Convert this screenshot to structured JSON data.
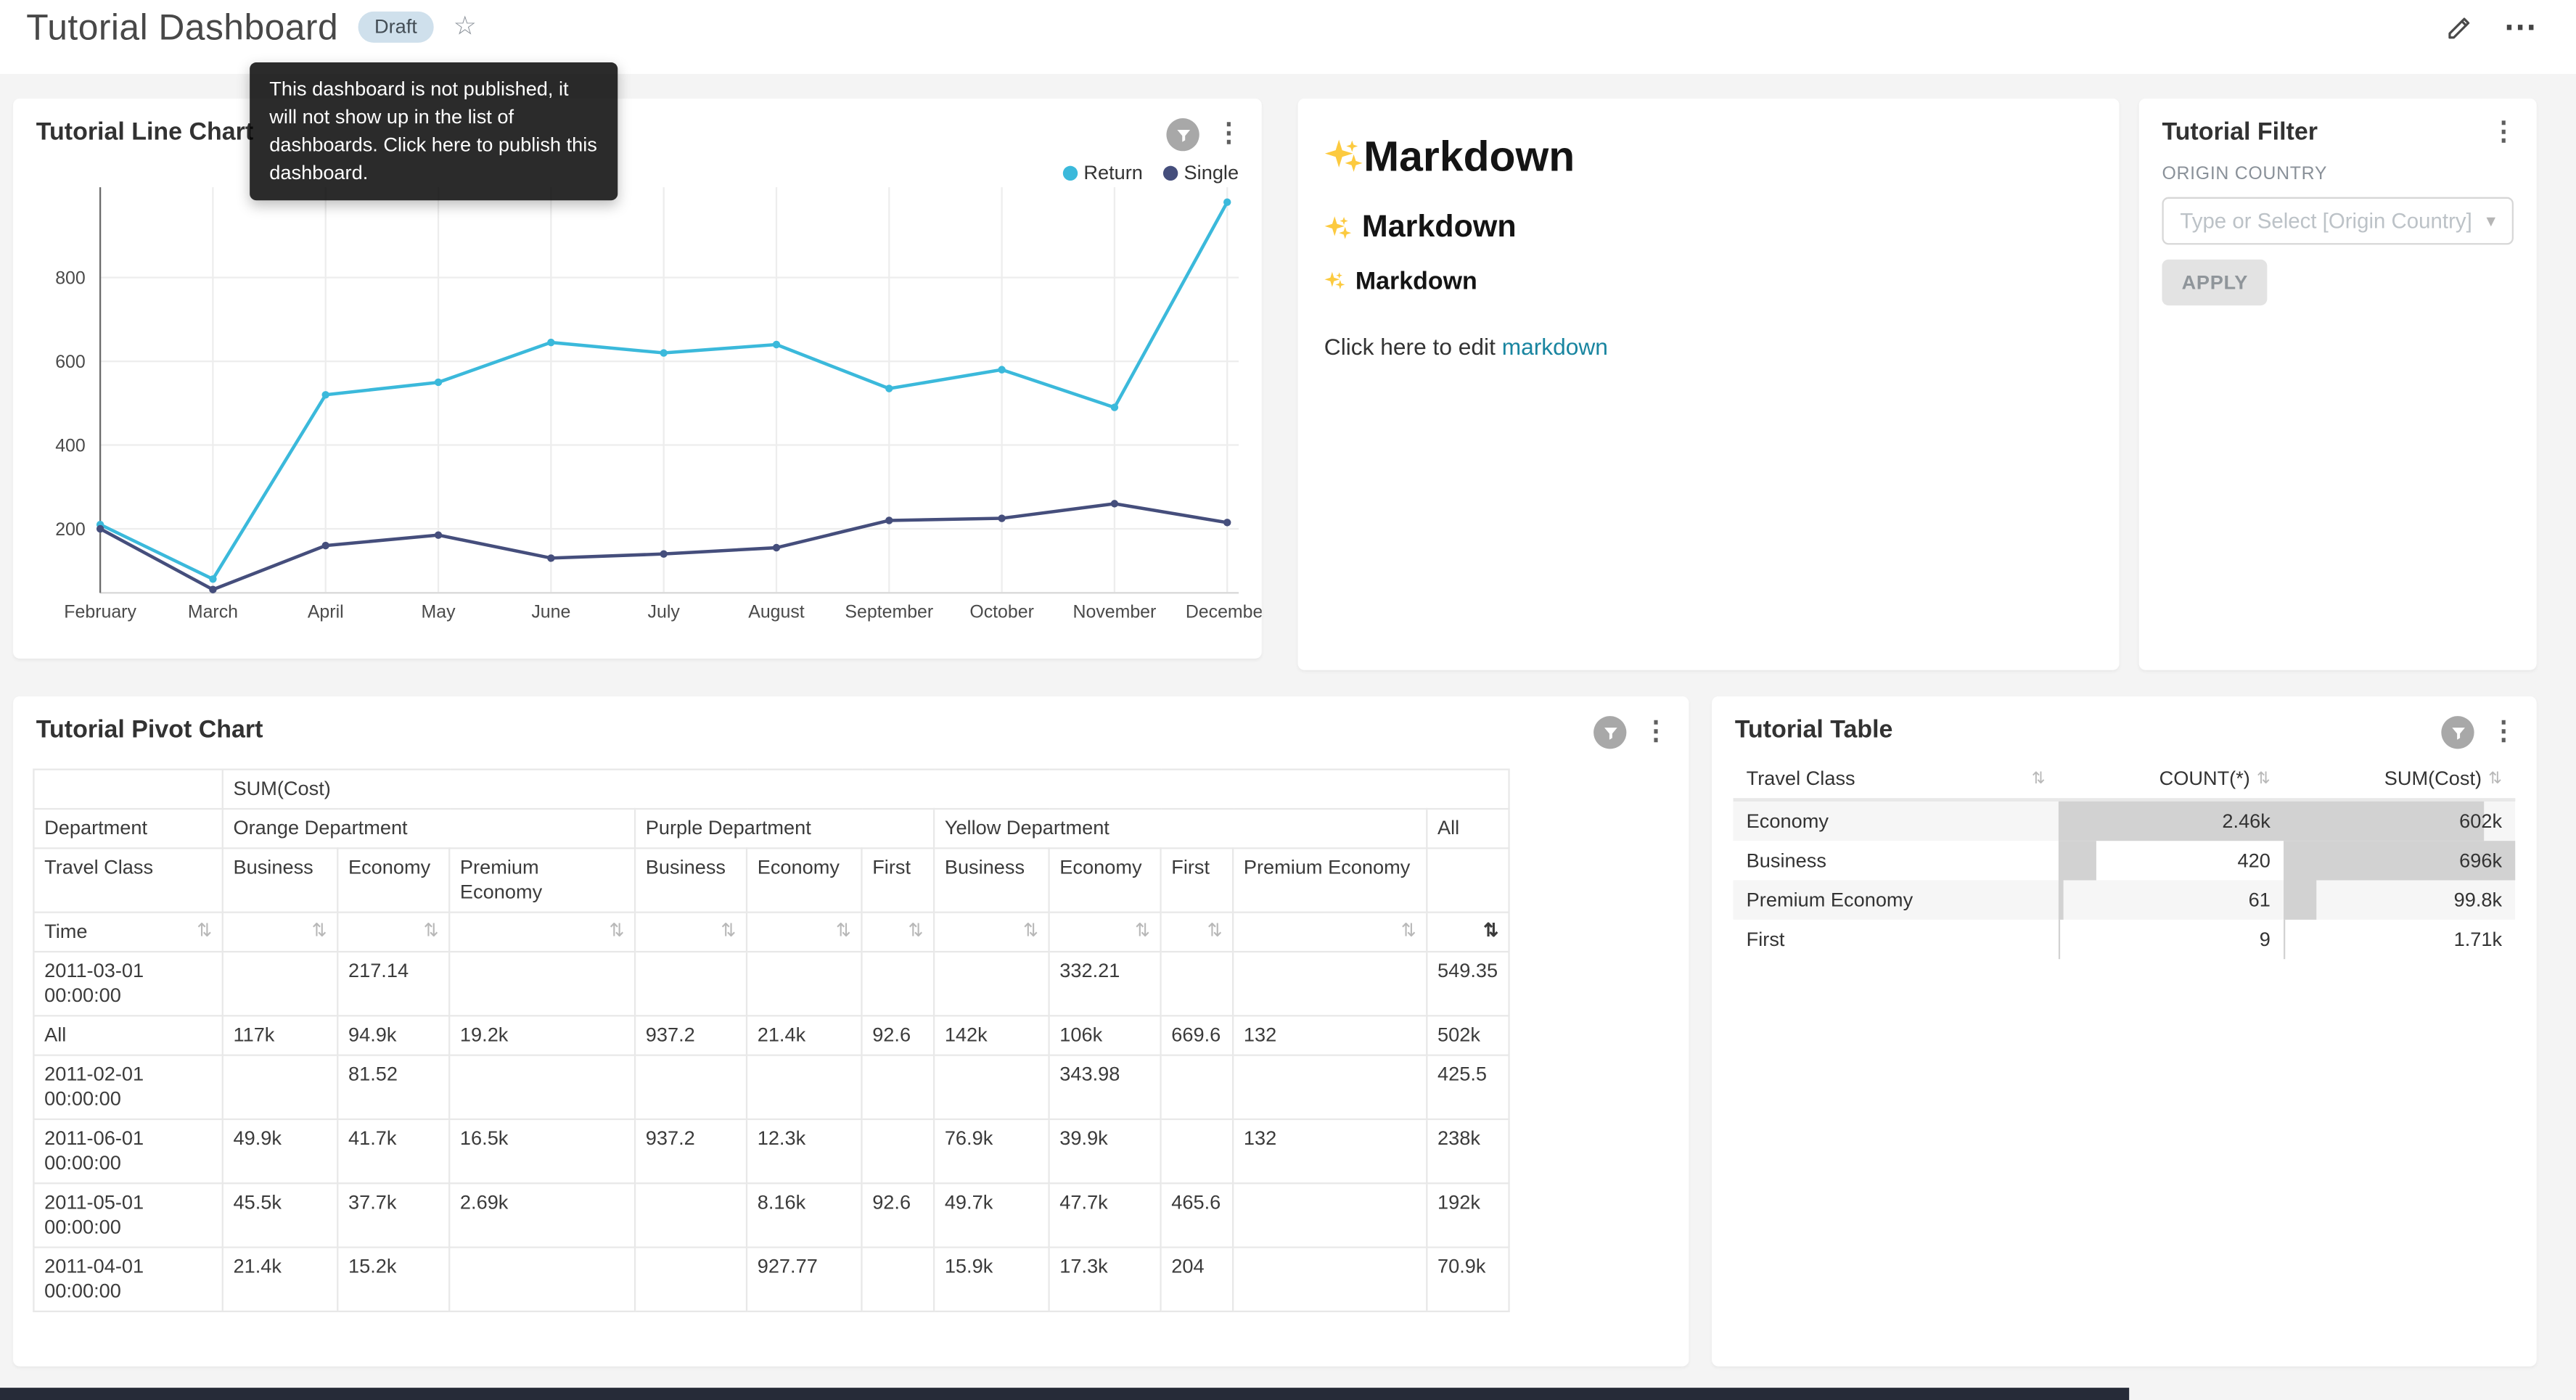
{
  "icons": {
    "kebab": "⋮",
    "more": "⋯",
    "star": "☆",
    "sort": "⇅",
    "caret_down": "▾"
  },
  "header": {
    "title": "Tutorial Dashboard",
    "badge_label": "Draft",
    "tooltip_text": "This dashboard is not published, it will not show up in the list of dashboards. Click here to publish this dashboard."
  },
  "line_chart_card": {
    "title": "Tutorial Line Chart",
    "chart_data": {
      "type": "line",
      "x": [
        "February",
        "March",
        "April",
        "May",
        "June",
        "July",
        "August",
        "September",
        "October",
        "November",
        "December"
      ],
      "series": [
        {
          "name": "Return",
          "color": "#3BB9DB",
          "values": [
            210,
            80,
            520,
            550,
            645,
            620,
            640,
            535,
            580,
            490,
            980
          ]
        },
        {
          "name": "Single",
          "color": "#454E7C",
          "values": [
            200,
            55,
            160,
            185,
            130,
            140,
            155,
            220,
            225,
            260,
            215
          ]
        }
      ],
      "yticks": [
        200,
        400,
        600,
        800
      ],
      "ylim": [
        0,
        1000
      ],
      "grid": true,
      "legend_position": "top-right"
    }
  },
  "markdown_card": {
    "icon": "sparkles-emoji",
    "heading1": "Markdown",
    "heading2": "Markdown",
    "heading3": "Markdown",
    "body_prefix": "Click here to edit ",
    "body_link": "markdown"
  },
  "filter_card": {
    "title": "Tutorial Filter",
    "field_label": "ORIGIN COUNTRY",
    "select_placeholder": "Type or Select [Origin Country]",
    "apply_button": "APPLY"
  },
  "pivot_card": {
    "title": "Tutorial Pivot Chart",
    "chart_data": {
      "type": "table",
      "metric": "SUM(Cost)",
      "row_dimension": "Department",
      "col_dimension": "Travel Class",
      "time_header": "Time",
      "column_groups": [
        {
          "label": "Orange Department",
          "columns": [
            "Business",
            "Economy",
            "Premium Economy"
          ]
        },
        {
          "label": "Purple Department",
          "columns": [
            "Business",
            "Economy",
            "First"
          ]
        },
        {
          "label": "Yellow Department",
          "columns": [
            "Business",
            "Economy",
            "First",
            "Premium Economy"
          ]
        },
        {
          "label": "All",
          "columns": [
            ""
          ]
        }
      ],
      "rows": [
        {
          "time": "2011-03-01 00:00:00",
          "values": [
            "",
            "217.14",
            "",
            "",
            "",
            "",
            "",
            "332.21",
            "",
            "",
            "549.35"
          ]
        },
        {
          "time": "All",
          "values": [
            "117k",
            "94.9k",
            "19.2k",
            "937.2",
            "21.4k",
            "92.6",
            "142k",
            "106k",
            "669.6",
            "132",
            "502k"
          ]
        },
        {
          "time": "2011-02-01 00:00:00",
          "values": [
            "",
            "81.52",
            "",
            "",
            "",
            "",
            "",
            "343.98",
            "",
            "",
            "425.5"
          ]
        },
        {
          "time": "2011-06-01 00:00:00",
          "values": [
            "49.9k",
            "41.7k",
            "16.5k",
            "937.2",
            "12.3k",
            "",
            "76.9k",
            "39.9k",
            "",
            "132",
            "238k"
          ]
        },
        {
          "time": "2011-05-01 00:00:00",
          "values": [
            "45.5k",
            "37.7k",
            "2.69k",
            "",
            "8.16k",
            "92.6",
            "49.7k",
            "47.7k",
            "465.6",
            "",
            "192k"
          ]
        },
        {
          "time": "2011-04-01 00:00:00",
          "values": [
            "21.4k",
            "15.2k",
            "",
            "",
            "927.77",
            "",
            "15.9k",
            "17.3k",
            "204",
            "",
            "70.9k"
          ]
        }
      ]
    }
  },
  "table_card": {
    "title": "Tutorial Table",
    "chart_data": {
      "type": "table",
      "columns": [
        "Travel Class",
        "COUNT(*)",
        "SUM(Cost)"
      ],
      "rows": [
        {
          "travel_class": "Economy",
          "count_display": "2.46k",
          "count_value": 2460,
          "sum_display": "602k",
          "sum_value": 602000
        },
        {
          "travel_class": "Business",
          "count_display": "420",
          "count_value": 420,
          "sum_display": "696k",
          "sum_value": 696000
        },
        {
          "travel_class": "Premium Economy",
          "count_display": "61",
          "count_value": 61,
          "sum_display": "99.8k",
          "sum_value": 99800
        },
        {
          "travel_class": "First",
          "count_display": "9",
          "count_value": 9,
          "sum_display": "1.71k",
          "sum_value": 1710
        }
      ]
    }
  }
}
